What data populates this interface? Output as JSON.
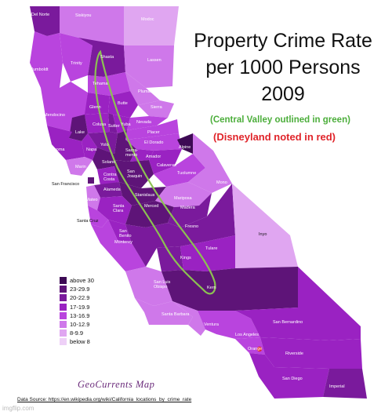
{
  "title": {
    "line1": "Property Crime Rate",
    "line2": "per 1000 Persons",
    "line3": "2009"
  },
  "subtitle_green": "(Central Valley outlined in green)",
  "subtitle_red": "(Disneyland noted in red)",
  "colors": {
    "above30": "#3d0a54",
    "c23_29": "#5e1478",
    "c20_22": "#7a1a9c",
    "c17_19": "#9a22c2",
    "c13_16": "#b944de",
    "c10_12": "#cf78ea",
    "c8_9": "#e0a6f1",
    "below8": "#eed0f7",
    "valley_outline": "#8cc152",
    "disneyland_marker": "#e03030"
  },
  "legend": [
    {
      "label": "above 30",
      "color": "#3d0a54"
    },
    {
      "label": "23-29.9",
      "color": "#5e1478"
    },
    {
      "label": "20-22.9",
      "color": "#7a1a9c"
    },
    {
      "label": "17-19.9",
      "color": "#9a22c2"
    },
    {
      "label": "13-16.9",
      "color": "#b944de"
    },
    {
      "label": "10-12.9",
      "color": "#cf78ea"
    },
    {
      "label": "8-9.9",
      "color": "#e0a6f1"
    },
    {
      "label": "below 8",
      "color": "#eed0f7"
    }
  ],
  "counties": {
    "del_norte": "Del Norte",
    "siskiyou": "Siskiyou",
    "modoc": "Modoc",
    "humboldt": "Humboldt",
    "trinity": "Trinity",
    "shasta": "Shasta",
    "lassen": "Lassen",
    "tehama": "Tehama",
    "plumas": "Plumas",
    "glenn": "Glenn",
    "butte": "Butte",
    "sierra": "Sierra",
    "mendocino": "Mendocino",
    "nevada": "Nevada",
    "placer": "Placer",
    "colusa": "Colusa",
    "sutter": "Sutter",
    "yuba": "Yuba",
    "lake": "Lake",
    "el_dorado": "El Dorado",
    "alpine": "Alpine",
    "sonoma": "Sonoma",
    "napa": "Napa",
    "yolo": "Yolo",
    "sacramento": "Sacra-\nmento",
    "amador": "Amador",
    "calaveras": "Calaveras",
    "solano": "Solano",
    "marin": "Marin",
    "contra_costa": "Contra\nCosta",
    "san_joaquin": "San\nJoaquin",
    "tuolumne": "Tuolumne",
    "mono": "Mono",
    "san_francisco": "San Francisco",
    "alameda": "Alameda",
    "stanislaus": "Stanislaus",
    "mariposa": "Mariposa",
    "san_mateo": "San Mateo",
    "santa_clara": "Santa\nClara",
    "merced": "Merced",
    "madera": "Madera",
    "santa_cruz": "Santa Cruz",
    "fresno": "Fresno",
    "inyo": "Inyo",
    "san_benito": "San\nBenito",
    "monterey": "Monterey",
    "tulare": "Tulare",
    "kings": "Kings",
    "kern": "Kern",
    "san_luis_obispo": "San Luis\nObispo",
    "santa_barbara": "Santa Barbara",
    "ventura": "Ventura",
    "los_angeles": "Los Angeles",
    "san_bernardino": "San Bernardino",
    "orange": "Orange",
    "riverside": "Riverside",
    "san_diego": "San Diego",
    "imperial": "Imperial"
  },
  "credit": "GeoCurrents Map",
  "source": "Data Source: https://en.wikipedia.org/wiki/California_locations_by_crime_rate",
  "watermark": "imgflip.com"
}
